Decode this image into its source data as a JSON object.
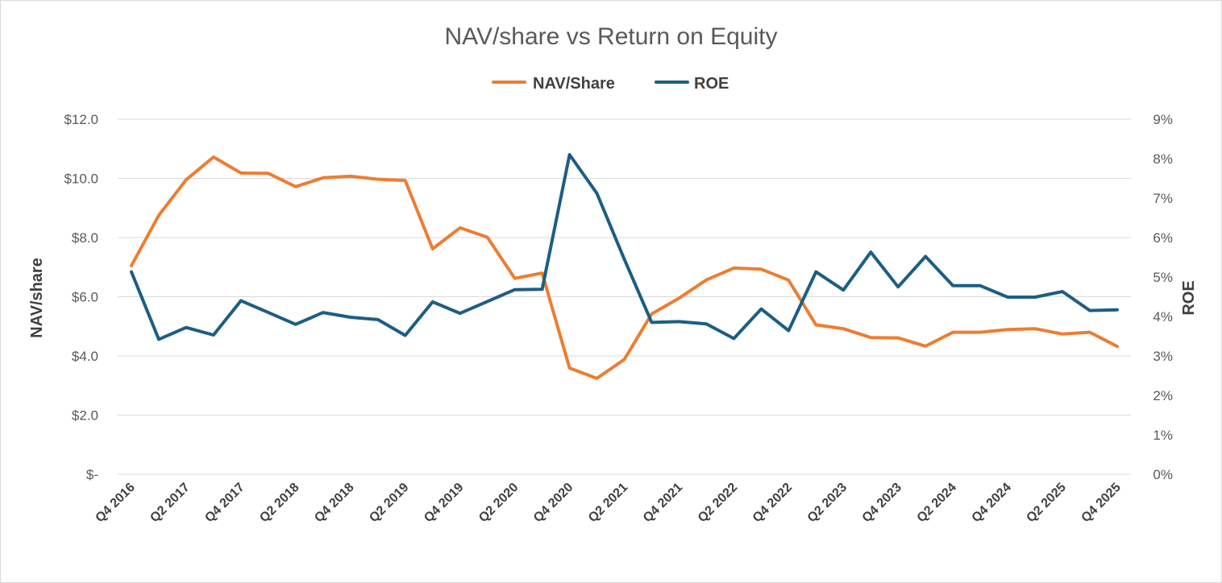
{
  "chart_data": {
    "type": "line",
    "title": "NAV/share vs Return on Equity",
    "ylabel_left": "NAV/share",
    "ylabel_right": "ROE",
    "xlabel": "",
    "y_left_ticks": [
      "$-",
      "$2.0",
      "$4.0",
      "$6.0",
      "$8.0",
      "$10.0",
      "$12.0"
    ],
    "y_right_ticks": [
      "0%",
      "1%",
      "2%",
      "3%",
      "4%",
      "5%",
      "6%",
      "7%",
      "8%",
      "9%"
    ],
    "y_left_range": [
      0,
      12
    ],
    "y_right_range": [
      0,
      0.09
    ],
    "x_tick_labels": [
      "Q4 2016",
      "Q2 2017",
      "Q4 2017",
      "Q2 2018",
      "Q4 2018",
      "Q2 2019",
      "Q4 2019",
      "Q2 2020",
      "Q4 2020",
      "Q2 2021",
      "Q4 2021",
      "Q2 2022",
      "Q4 2022",
      "Q2 2023",
      "Q4 2023",
      "Q2 2024",
      "Q4 2024",
      "Q2 2025",
      "Q4 2025"
    ],
    "categories": [
      "Q4 2016",
      "Q1 2017",
      "Q2 2017",
      "Q3 2017",
      "Q4 2017",
      "Q1 2018",
      "Q2 2018",
      "Q3 2018",
      "Q4 2018",
      "Q1 2019",
      "Q2 2019",
      "Q3 2019",
      "Q4 2019",
      "Q1 2020",
      "Q2 2020",
      "Q3 2020",
      "Q4 2020",
      "Q1 2021",
      "Q2 2021",
      "Q3 2021",
      "Q4 2021",
      "Q1 2022",
      "Q2 2022",
      "Q3 2022",
      "Q4 2022",
      "Q1 2023",
      "Q2 2023",
      "Q3 2023",
      "Q4 2023",
      "Q1 2024",
      "Q2 2024",
      "Q3 2024",
      "Q4 2024",
      "Q1 2025",
      "Q2 2025",
      "Q3 2025",
      "Q4 2025"
    ],
    "grid": true,
    "legend_position": "top",
    "series": [
      {
        "name": "NAV/Share",
        "axis": "left",
        "color": "#ed7d31",
        "values": [
          7.05,
          8.75,
          9.95,
          10.72,
          10.18,
          10.17,
          9.72,
          10.02,
          10.07,
          9.97,
          9.93,
          7.62,
          8.33,
          8.01,
          6.62,
          6.8,
          3.59,
          3.24,
          3.88,
          5.42,
          5.95,
          6.57,
          6.97,
          6.93,
          6.56,
          5.05,
          4.92,
          4.62,
          4.61,
          4.33,
          4.8,
          4.8,
          4.89,
          4.92,
          4.74,
          4.8,
          4.32
        ]
      },
      {
        "name": "ROE",
        "axis": "right",
        "color": "#1b5e84",
        "values": [
          0.0513,
          0.0342,
          0.0372,
          0.0353,
          0.044,
          0.041,
          0.038,
          0.041,
          0.0398,
          0.0392,
          0.0352,
          0.0437,
          0.0408,
          0.0438,
          0.0468,
          0.0469,
          0.081,
          0.0712,
          0.0545,
          0.0385,
          0.0387,
          0.0381,
          0.0344,
          0.0419,
          0.0364,
          0.0513,
          0.0467,
          0.0563,
          0.0475,
          0.0552,
          0.0478,
          0.0478,
          0.0449,
          0.0449,
          0.0463,
          0.0415,
          0.0417
        ]
      }
    ]
  }
}
